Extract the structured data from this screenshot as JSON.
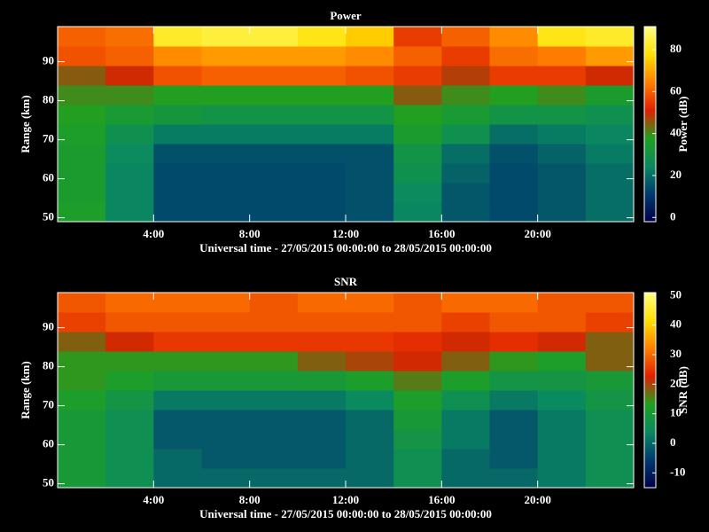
{
  "chart_data": [
    {
      "type": "heatmap",
      "title": "Power",
      "xlabel": "Universal time - 27/05/2015 00:00:00 to 28/05/2015 00:00:00",
      "ylabel": "Range (km)",
      "colorbar_label": "Power (dB)",
      "x": [
        1,
        3,
        5,
        7,
        9,
        11,
        13,
        15,
        17,
        19,
        21,
        23
      ],
      "y": [
        51.5,
        56.5,
        61.5,
        66.5,
        71.5,
        76.5,
        81.5,
        86.5,
        91.5,
        96.5
      ],
      "z": [
        [
          36,
          24,
          14,
          14,
          14,
          14,
          15,
          24,
          16,
          14,
          16,
          20
        ],
        [
          35,
          24,
          14,
          14,
          14,
          14,
          15,
          25,
          16,
          14,
          16,
          20
        ],
        [
          35,
          24,
          14,
          14,
          14,
          14,
          15,
          28,
          18,
          14,
          16,
          20
        ],
        [
          35,
          25,
          15,
          15,
          15,
          15,
          15,
          30,
          20,
          15,
          18,
          22
        ],
        [
          36,
          28,
          22,
          22,
          22,
          22,
          22,
          35,
          28,
          20,
          22,
          24
        ],
        [
          38,
          34,
          32,
          30,
          30,
          30,
          30,
          38,
          34,
          30,
          30,
          28
        ],
        [
          40,
          40,
          38,
          38,
          38,
          38,
          38,
          45,
          40,
          38,
          40,
          35
        ],
        [
          45,
          50,
          58,
          60,
          60,
          60,
          58,
          55,
          48,
          55,
          55,
          50
        ],
        [
          58,
          60,
          66,
          68,
          68,
          68,
          66,
          60,
          55,
          62,
          64,
          68
        ],
        [
          60,
          62,
          82,
          84,
          84,
          80,
          75,
          55,
          60,
          66,
          80,
          82
        ]
      ],
      "xlim": [
        0,
        24
      ],
      "ylim": [
        49,
        99
      ],
      "xticks": [
        {
          "value": 4,
          "label": "4:00"
        },
        {
          "value": 8,
          "label": "8:00"
        },
        {
          "value": 12,
          "label": "12:00"
        },
        {
          "value": 16,
          "label": "16:00"
        },
        {
          "value": 20,
          "label": "20:00"
        }
      ],
      "yticks": [
        50,
        60,
        70,
        80,
        90
      ],
      "clim": [
        -2,
        91
      ],
      "cticks": [
        0,
        20,
        40,
        60,
        80
      ],
      "colormap": [
        "#00004a",
        "#003a6e",
        "#0a8a60",
        "#20a020",
        "#e02000",
        "#ff8000",
        "#ffe000",
        "#ffff80"
      ]
    },
    {
      "type": "heatmap",
      "title": "SNR",
      "xlabel": "Universal time - 27/05/2015 00:00:00 to 28/05/2015 00:00:00",
      "ylabel": "Range (km)",
      "colorbar_label": "SNR (dB)",
      "x": [
        1,
        3,
        5,
        7,
        9,
        11,
        13,
        15,
        17,
        19,
        21,
        23
      ],
      "y": [
        51.5,
        56.5,
        61.5,
        66.5,
        71.5,
        76.5,
        81.5,
        86.5,
        91.5,
        96.5
      ],
      "z": [
        [
          10,
          6,
          0,
          0,
          0,
          0,
          0,
          6,
          0,
          0,
          2,
          6
        ],
        [
          10,
          6,
          0,
          -2,
          -2,
          -2,
          0,
          6,
          0,
          -2,
          2,
          6
        ],
        [
          10,
          6,
          -2,
          -2,
          -2,
          -2,
          0,
          8,
          2,
          -2,
          2,
          6
        ],
        [
          10,
          6,
          -2,
          -2,
          -2,
          -2,
          0,
          10,
          2,
          -2,
          2,
          6
        ],
        [
          12,
          8,
          2,
          2,
          2,
          2,
          4,
          12,
          6,
          2,
          4,
          8
        ],
        [
          14,
          12,
          10,
          10,
          10,
          10,
          12,
          16,
          12,
          8,
          8,
          10
        ],
        [
          14,
          14,
          14,
          14,
          14,
          18,
          20,
          22,
          18,
          14,
          12,
          18
        ],
        [
          18,
          22,
          25,
          25,
          25,
          25,
          25,
          24,
          22,
          24,
          22,
          18
        ],
        [
          26,
          28,
          28,
          28,
          28,
          28,
          28,
          28,
          26,
          28,
          28,
          26
        ],
        [
          28,
          30,
          30,
          30,
          28,
          30,
          30,
          28,
          30,
          30,
          28,
          28
        ]
      ],
      "xlim": [
        0,
        24
      ],
      "ylim": [
        49,
        99
      ],
      "xticks": [
        {
          "value": 4,
          "label": "4:00"
        },
        {
          "value": 8,
          "label": "8:00"
        },
        {
          "value": 12,
          "label": "12:00"
        },
        {
          "value": 16,
          "label": "16:00"
        },
        {
          "value": 20,
          "label": "20:00"
        }
      ],
      "yticks": [
        50,
        60,
        70,
        80,
        90
      ],
      "clim": [
        -15,
        51
      ],
      "cticks": [
        -10,
        0,
        10,
        20,
        30,
        40,
        50
      ],
      "colormap": [
        "#00004a",
        "#003a6e",
        "#0a8a60",
        "#20a020",
        "#e02000",
        "#ff8000",
        "#ffe000",
        "#ffff80"
      ]
    }
  ]
}
